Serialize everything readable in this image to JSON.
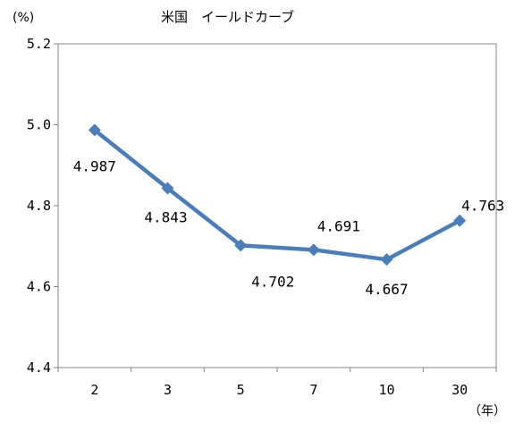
{
  "chart_data": {
    "type": "line",
    "title": "米国　イールドカーブ",
    "y_unit": "(%)",
    "x_unit": "（年）",
    "categories": [
      "2",
      "3",
      "5",
      "7",
      "10",
      "30"
    ],
    "series": [
      {
        "values": [
          4.987,
          4.843,
          4.702,
          4.691,
          4.667,
          4.763
        ],
        "color": "#4a7ebb"
      }
    ],
    "data_labels": [
      "4.987",
      "4.843",
      "4.702",
      "4.691",
      "4.667",
      "4.763"
    ],
    "y_ticks": [
      "4.4",
      "4.6",
      "4.8",
      "5.0",
      "5.2"
    ],
    "ylim": [
      4.4,
      5.2
    ],
    "marker": "diamond",
    "grid": false,
    "legend": "none"
  }
}
